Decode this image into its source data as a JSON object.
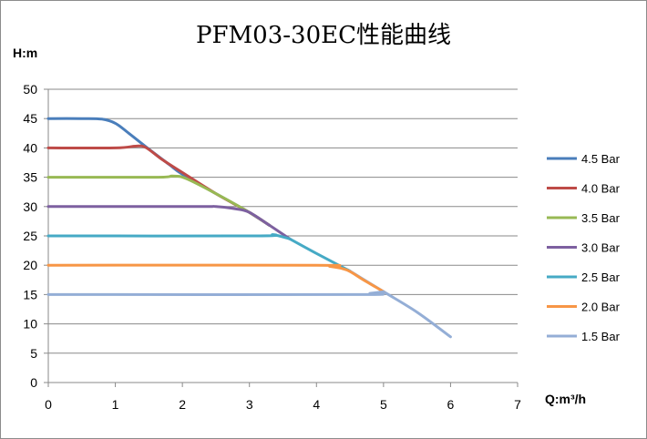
{
  "chart_data": {
    "type": "line",
    "title": "PFM03-30EC性能曲线",
    "xlabel": "Q:m³/h",
    "ylabel": "H:m",
    "xlim": [
      0,
      7
    ],
    "ylim": [
      0,
      50
    ],
    "xticks": [
      0,
      1,
      2,
      3,
      4,
      5,
      6,
      7
    ],
    "yticks": [
      0,
      5,
      10,
      15,
      20,
      25,
      30,
      35,
      40,
      45,
      50
    ],
    "grid": true,
    "legend_position": "right",
    "shared_tail": [
      [
        3.6,
        24.5
      ],
      [
        4.0,
        22.0
      ],
      [
        4.5,
        19.0
      ],
      [
        5.0,
        15.5
      ],
      [
        5.5,
        12.0
      ],
      [
        6.0,
        7.8
      ]
    ],
    "series": [
      {
        "name": "4.5 Bar",
        "color": "#4a7ebb",
        "points": [
          [
            0,
            45
          ],
          [
            0.5,
            45
          ],
          [
            0.8,
            44.9
          ],
          [
            1.0,
            44.2
          ],
          [
            1.2,
            42.5
          ],
          [
            1.5,
            39.8
          ],
          [
            1.8,
            37.2
          ],
          [
            2.0,
            35.5
          ],
          [
            2.5,
            32.2
          ],
          [
            3.0,
            29.0
          ],
          [
            3.3,
            26.8
          ]
        ]
      },
      {
        "name": "4.0 Bar",
        "color": "#be4b48",
        "points": [
          [
            0,
            40
          ],
          [
            1.0,
            40
          ],
          [
            1.3,
            40.3
          ],
          [
            1.45,
            40.1
          ],
          [
            1.7,
            38.0
          ],
          [
            2.0,
            35.8
          ],
          [
            2.5,
            32.2
          ],
          [
            3.0,
            29.0
          ],
          [
            3.3,
            26.8
          ]
        ]
      },
      {
        "name": "3.5 Bar",
        "color": "#98b954",
        "points": [
          [
            0,
            35
          ],
          [
            1.6,
            35
          ],
          [
            1.85,
            35.2
          ],
          [
            2.05,
            34.8
          ],
          [
            2.5,
            32.2
          ],
          [
            3.0,
            29.0
          ],
          [
            3.3,
            26.8
          ]
        ]
      },
      {
        "name": "3.0 Bar",
        "color": "#7d60a0",
        "points": [
          [
            0,
            30
          ],
          [
            2.2,
            30
          ],
          [
            2.5,
            30
          ],
          [
            2.8,
            29.6
          ],
          [
            3.0,
            29.0
          ],
          [
            3.3,
            26.8
          ]
        ]
      },
      {
        "name": "2.5 Bar",
        "color": "#46aac5",
        "points": [
          [
            0,
            25
          ],
          [
            3.1,
            25
          ],
          [
            3.35,
            25.2
          ],
          [
            3.6,
            24.5
          ]
        ]
      },
      {
        "name": "2.0 Bar",
        "color": "#f79646",
        "points": [
          [
            0,
            20
          ],
          [
            4.0,
            20
          ],
          [
            4.2,
            19.8
          ],
          [
            4.45,
            19.2
          ],
          [
            4.7,
            17.5
          ],
          [
            5.0,
            15.5
          ]
        ]
      },
      {
        "name": "1.5 Bar",
        "color": "#94aed6",
        "points": [
          [
            0,
            15
          ],
          [
            4.6,
            15
          ],
          [
            4.8,
            15.2
          ],
          [
            5.0,
            15.5
          ]
        ]
      }
    ]
  }
}
